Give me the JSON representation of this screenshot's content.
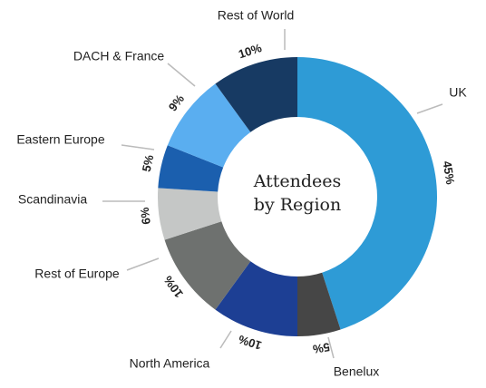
{
  "chart_data": {
    "type": "donut",
    "title": "Attendees by Region",
    "categories": [
      "UK",
      "Benelux",
      "North America",
      "Rest of Europe",
      "Scandinavia",
      "Eastern Europe",
      "DACH & France",
      "Rest of World"
    ],
    "values": [
      45,
      5,
      10,
      10,
      6,
      5,
      9,
      10
    ],
    "value_labels": [
      "45%",
      "5%",
      "10%",
      "10%",
      "6%",
      "5%",
      "9%",
      "10%"
    ],
    "colors": [
      "#2e9bd6",
      "#464646",
      "#1d3f94",
      "#6e716f",
      "#c5c7c6",
      "#1b5fae",
      "#5aaef0",
      "#173a63"
    ]
  }
}
